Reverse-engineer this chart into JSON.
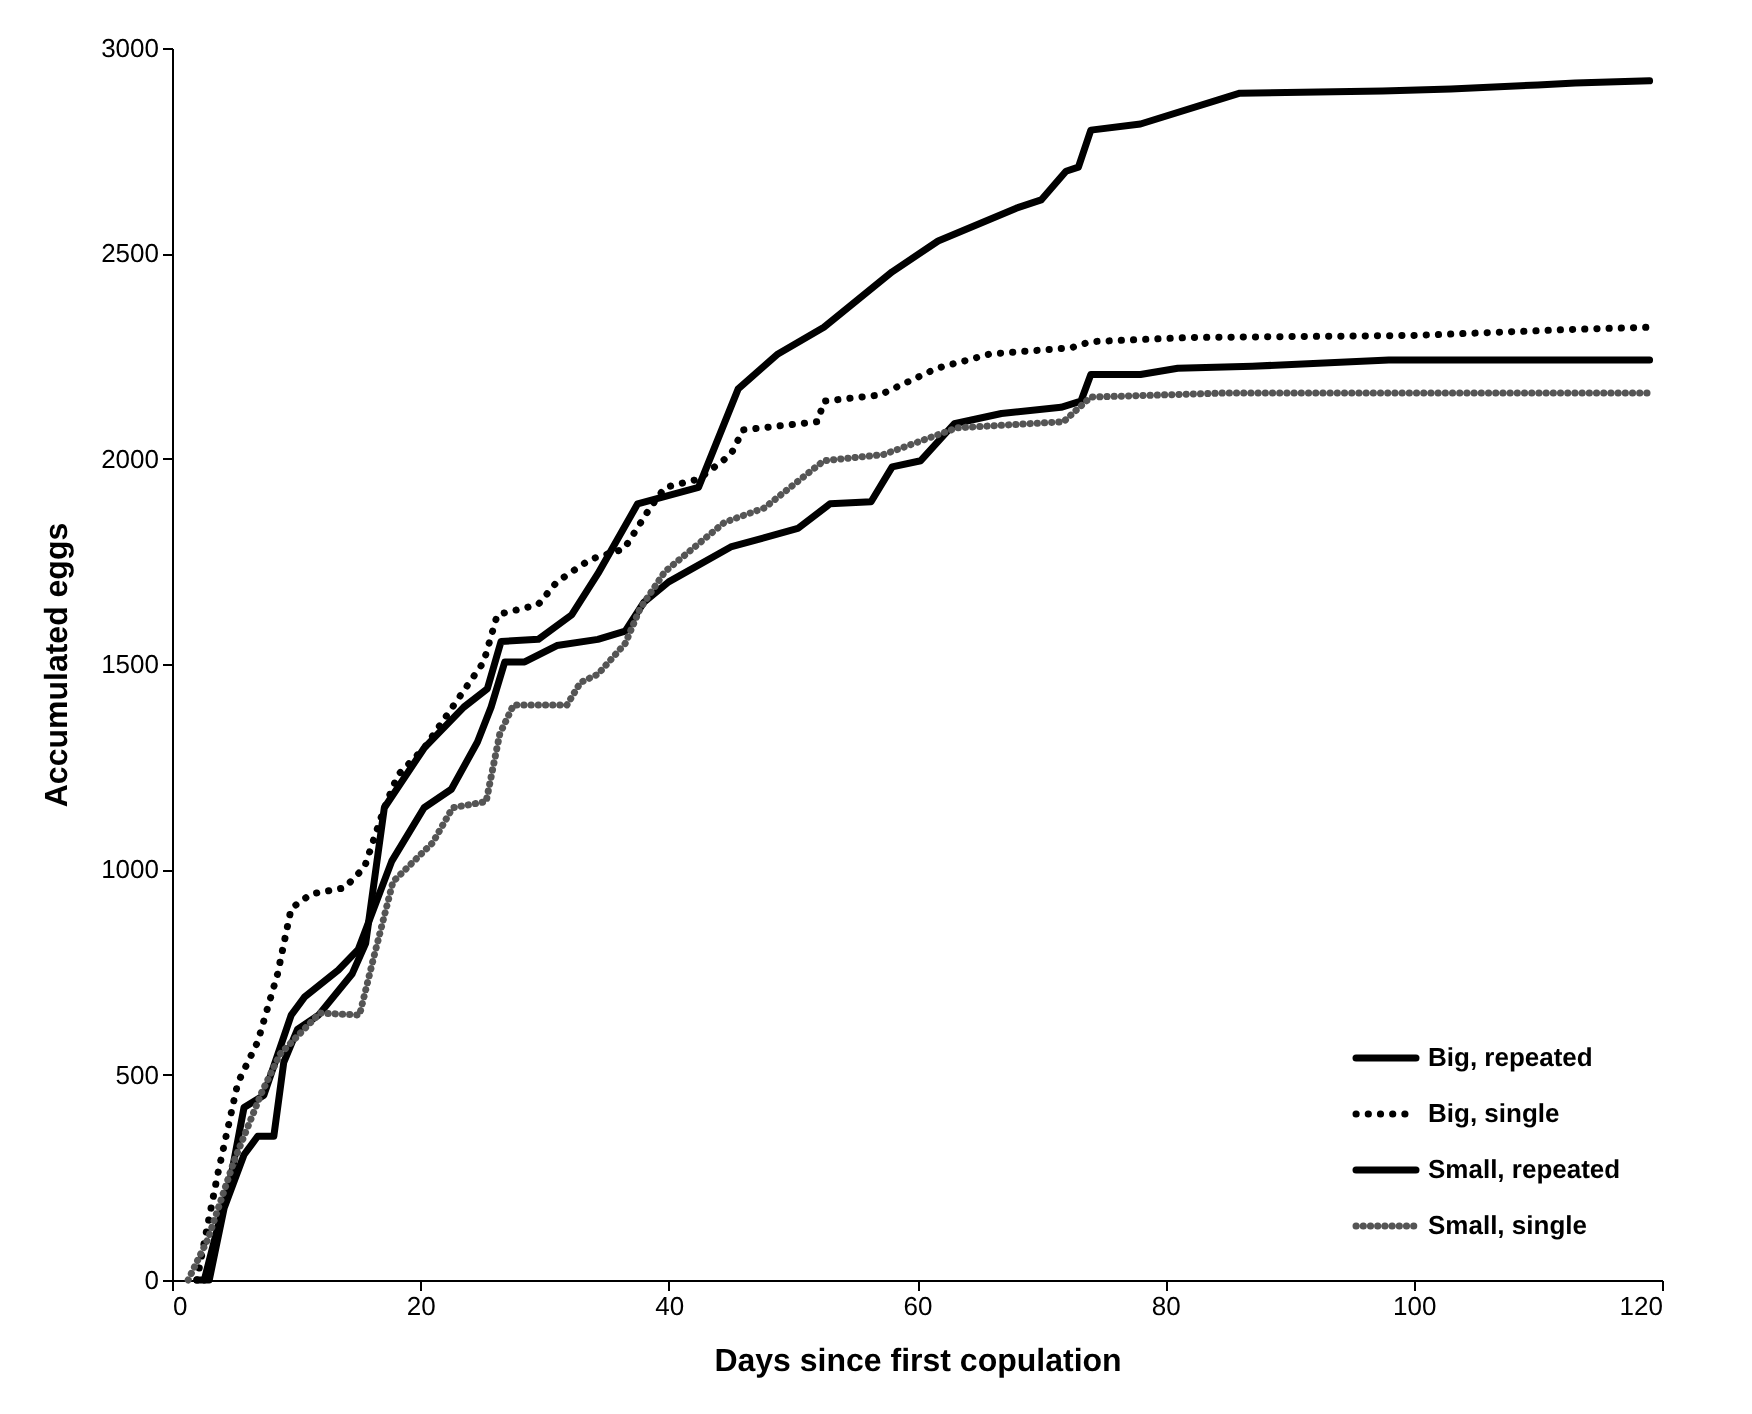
{
  "chart_data": {
    "type": "line",
    "xlabel": "Days since first copulation",
    "ylabel": "Accumulated eggs",
    "xlim": [
      0,
      120
    ],
    "ylim": [
      0,
      3000
    ],
    "xticks": [
      0,
      20,
      40,
      60,
      80,
      100,
      120
    ],
    "yticks": [
      0,
      500,
      1000,
      1500,
      2000,
      2500,
      3000
    ],
    "grid": false,
    "legend": "bottom right",
    "marker": "none",
    "series": [
      {
        "name": "Big, repeated",
        "color": "#000000",
        "line_style": "solid",
        "x": [
          2,
          3,
          4.2,
          5.8,
          6.9,
          8.2,
          9,
          10.1,
          11.8,
          14.5,
          15.6,
          17.1,
          20.3,
          23.5,
          25.4,
          26.5,
          29.5,
          32.2,
          34.3,
          37.5,
          42.4,
          45.6,
          48.8,
          52.5,
          58,
          61.7,
          68,
          70,
          72,
          73,
          74,
          78,
          86,
          97.5,
          103,
          110,
          113,
          119
        ],
        "values": [
          0,
          0,
          175,
          305,
          350,
          350,
          530,
          610,
          645,
          745,
          820,
          1150,
          1295,
          1395,
          1440,
          1555,
          1560,
          1620,
          1720,
          1890,
          1930,
          2170,
          2255,
          2320,
          2455,
          2530,
          2610,
          2630,
          2700,
          2710,
          2800,
          2815,
          2890,
          2895,
          2900,
          2910,
          2915,
          2920
        ]
      },
      {
        "name": "Big, single",
        "color": "#000000",
        "line_style": "dotted",
        "x": [
          2,
          3.7,
          5.3,
          6.9,
          8.5,
          9.6,
          11.2,
          13.9,
          15.5,
          17.1,
          18.2,
          20.3,
          25.1,
          26.2,
          29.5,
          31,
          33.7,
          36.4,
          38.5,
          39.7,
          42.4,
          45,
          46,
          52,
          52.5,
          57,
          61.6,
          65.9,
          72.4,
          74,
          82,
          100,
          113,
          119
        ],
        "values": [
          0,
          260,
          480,
          580,
          745,
          905,
          940,
          955,
          1005,
          1150,
          1230,
          1295,
          1505,
          1620,
          1645,
          1700,
          1755,
          1780,
          1880,
          1930,
          1950,
          2010,
          2070,
          2090,
          2140,
          2155,
          2220,
          2255,
          2270,
          2285,
          2295,
          2300,
          2315,
          2320
        ]
      },
      {
        "name": "Small, repeated",
        "color": "#000000",
        "line_style": "solid",
        "x": [
          2.6,
          4.8,
          5.8,
          7.4,
          9.6,
          10.7,
          13.4,
          15,
          17.7,
          20.3,
          22.5,
          24.6,
          25.7,
          26.8,
          28.4,
          31,
          34.3,
          36.5,
          38,
          40,
          45,
          50.4,
          53,
          56.3,
          58,
          60.3,
          63,
          66.8,
          71.6,
          73.2,
          74,
          78,
          81,
          87,
          98,
          119
        ],
        "values": [
          0,
          260,
          420,
          450,
          645,
          690,
          755,
          805,
          1020,
          1150,
          1195,
          1310,
          1395,
          1505,
          1505,
          1545,
          1560,
          1580,
          1650,
          1700,
          1785,
          1830,
          1890,
          1895,
          1980,
          1995,
          2085,
          2110,
          2125,
          2140,
          2205,
          2205,
          2220,
          2225,
          2240,
          2240
        ]
      },
      {
        "name": "Small, single",
        "color": "#555555",
        "line_style": "dotted",
        "x": [
          1.3,
          2.9,
          5,
          7.2,
          8.7,
          10.3,
          11.9,
          15.1,
          16.2,
          17.8,
          21,
          22.6,
          25.3,
          26.4,
          27.5,
          31.8,
          32.9,
          34.3,
          36.5,
          37.7,
          39.7,
          44.5,
          47.7,
          52.5,
          57.3,
          63.2,
          71.8,
          74,
          85,
          119
        ],
        "values": [
          0,
          100,
          290,
          455,
          550,
          600,
          650,
          645,
          780,
          970,
          1065,
          1150,
          1165,
          1330,
          1400,
          1400,
          1455,
          1475,
          1550,
          1635,
          1725,
          1845,
          1880,
          1995,
          2010,
          2075,
          2090,
          2150,
          2160,
          2160
        ]
      }
    ]
  }
}
